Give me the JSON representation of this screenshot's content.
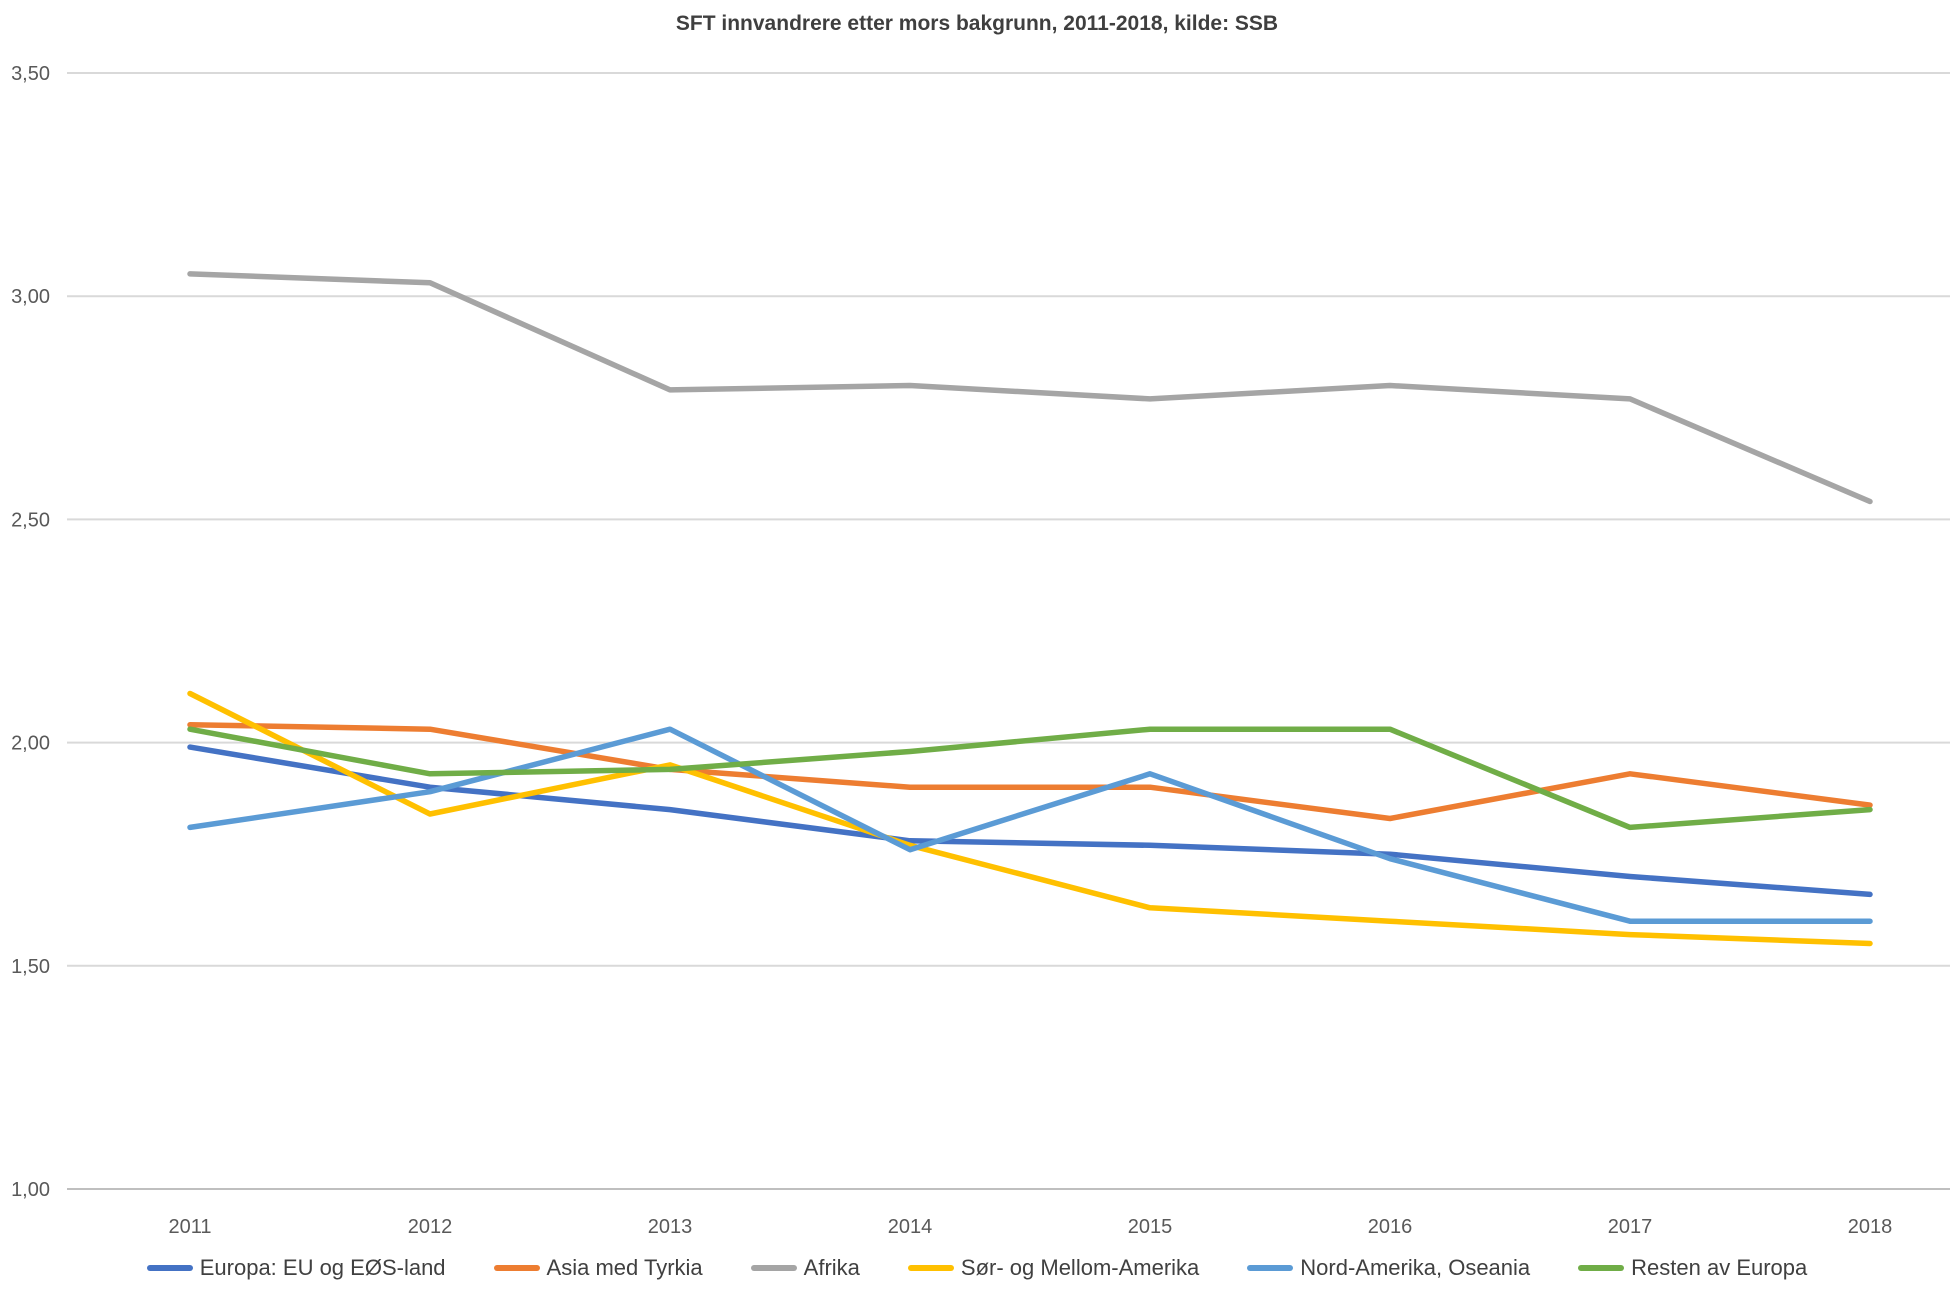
{
  "title": "SFT innvandrere etter mors bakgrunn, 2011-2018, kilde: SSB",
  "chart_data": {
    "type": "line",
    "x": [
      "2011",
      "2012",
      "2013",
      "2014",
      "2015",
      "2016",
      "2017",
      "2018"
    ],
    "series": [
      {
        "name": "Europa: EU og EØS-land",
        "color": "#4472C4",
        "values": [
          1.99,
          1.9,
          1.85,
          1.78,
          1.77,
          1.75,
          1.7,
          1.66
        ]
      },
      {
        "name": "Asia med Tyrkia",
        "color": "#ED7D31",
        "values": [
          2.04,
          2.03,
          1.94,
          1.9,
          1.9,
          1.83,
          1.93,
          1.86
        ]
      },
      {
        "name": "Afrika",
        "color": "#A5A5A5",
        "values": [
          3.05,
          3.03,
          2.79,
          2.8,
          2.77,
          2.8,
          2.77,
          2.54
        ]
      },
      {
        "name": "Sør- og Mellom-Amerika",
        "color": "#FFC000",
        "values": [
          2.11,
          1.84,
          1.95,
          1.77,
          1.63,
          1.6,
          1.57,
          1.55
        ]
      },
      {
        "name": "Nord-Amerika, Oseania",
        "color": "#5B9BD5",
        "values": [
          1.81,
          1.89,
          2.03,
          1.76,
          1.93,
          1.74,
          1.6,
          1.6
        ]
      },
      {
        "name": "Resten av Europa",
        "color": "#70AD47",
        "values": [
          2.03,
          1.93,
          1.94,
          1.98,
          2.03,
          2.03,
          1.81,
          1.85
        ]
      }
    ],
    "ylim": [
      1.0,
      3.5
    ],
    "yticks": [
      {
        "value": 3.5,
        "label": "3,50"
      },
      {
        "value": 3.0,
        "label": "3,00"
      },
      {
        "value": 2.5,
        "label": "2,50"
      },
      {
        "value": 2.0,
        "label": "2,00"
      },
      {
        "value": 1.5,
        "label": "1,50"
      },
      {
        "value": 1.0,
        "label": "1,00"
      }
    ],
    "grid": true,
    "legend_position": "bottom",
    "gridline_color": "#D9D9D9",
    "axis_line_color": "#BFBFBF",
    "tick_label_color": "#595959"
  }
}
